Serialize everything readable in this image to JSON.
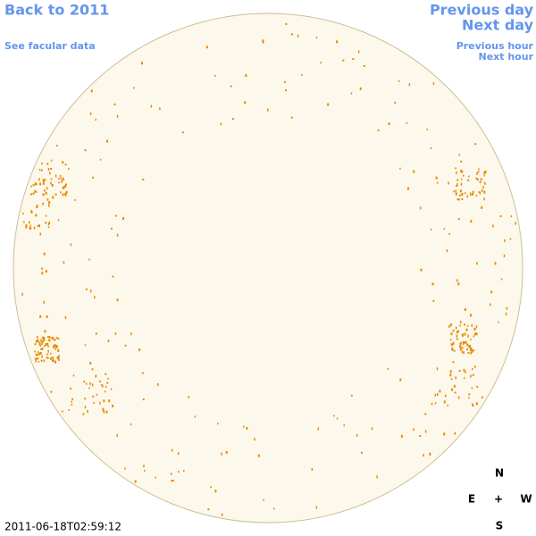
{
  "navigation": {
    "back": "Back to 2011",
    "facular_data": "See facular data",
    "previous_day": "Previous day",
    "next_day": "Next day",
    "previous_hour": "Previous hour",
    "next_hour": "Next hour"
  },
  "timestamp": "2011-06-18T02:59:12",
  "compass": {
    "north": "N",
    "east": "E",
    "center": "+",
    "west": "W",
    "south": "S"
  }
}
